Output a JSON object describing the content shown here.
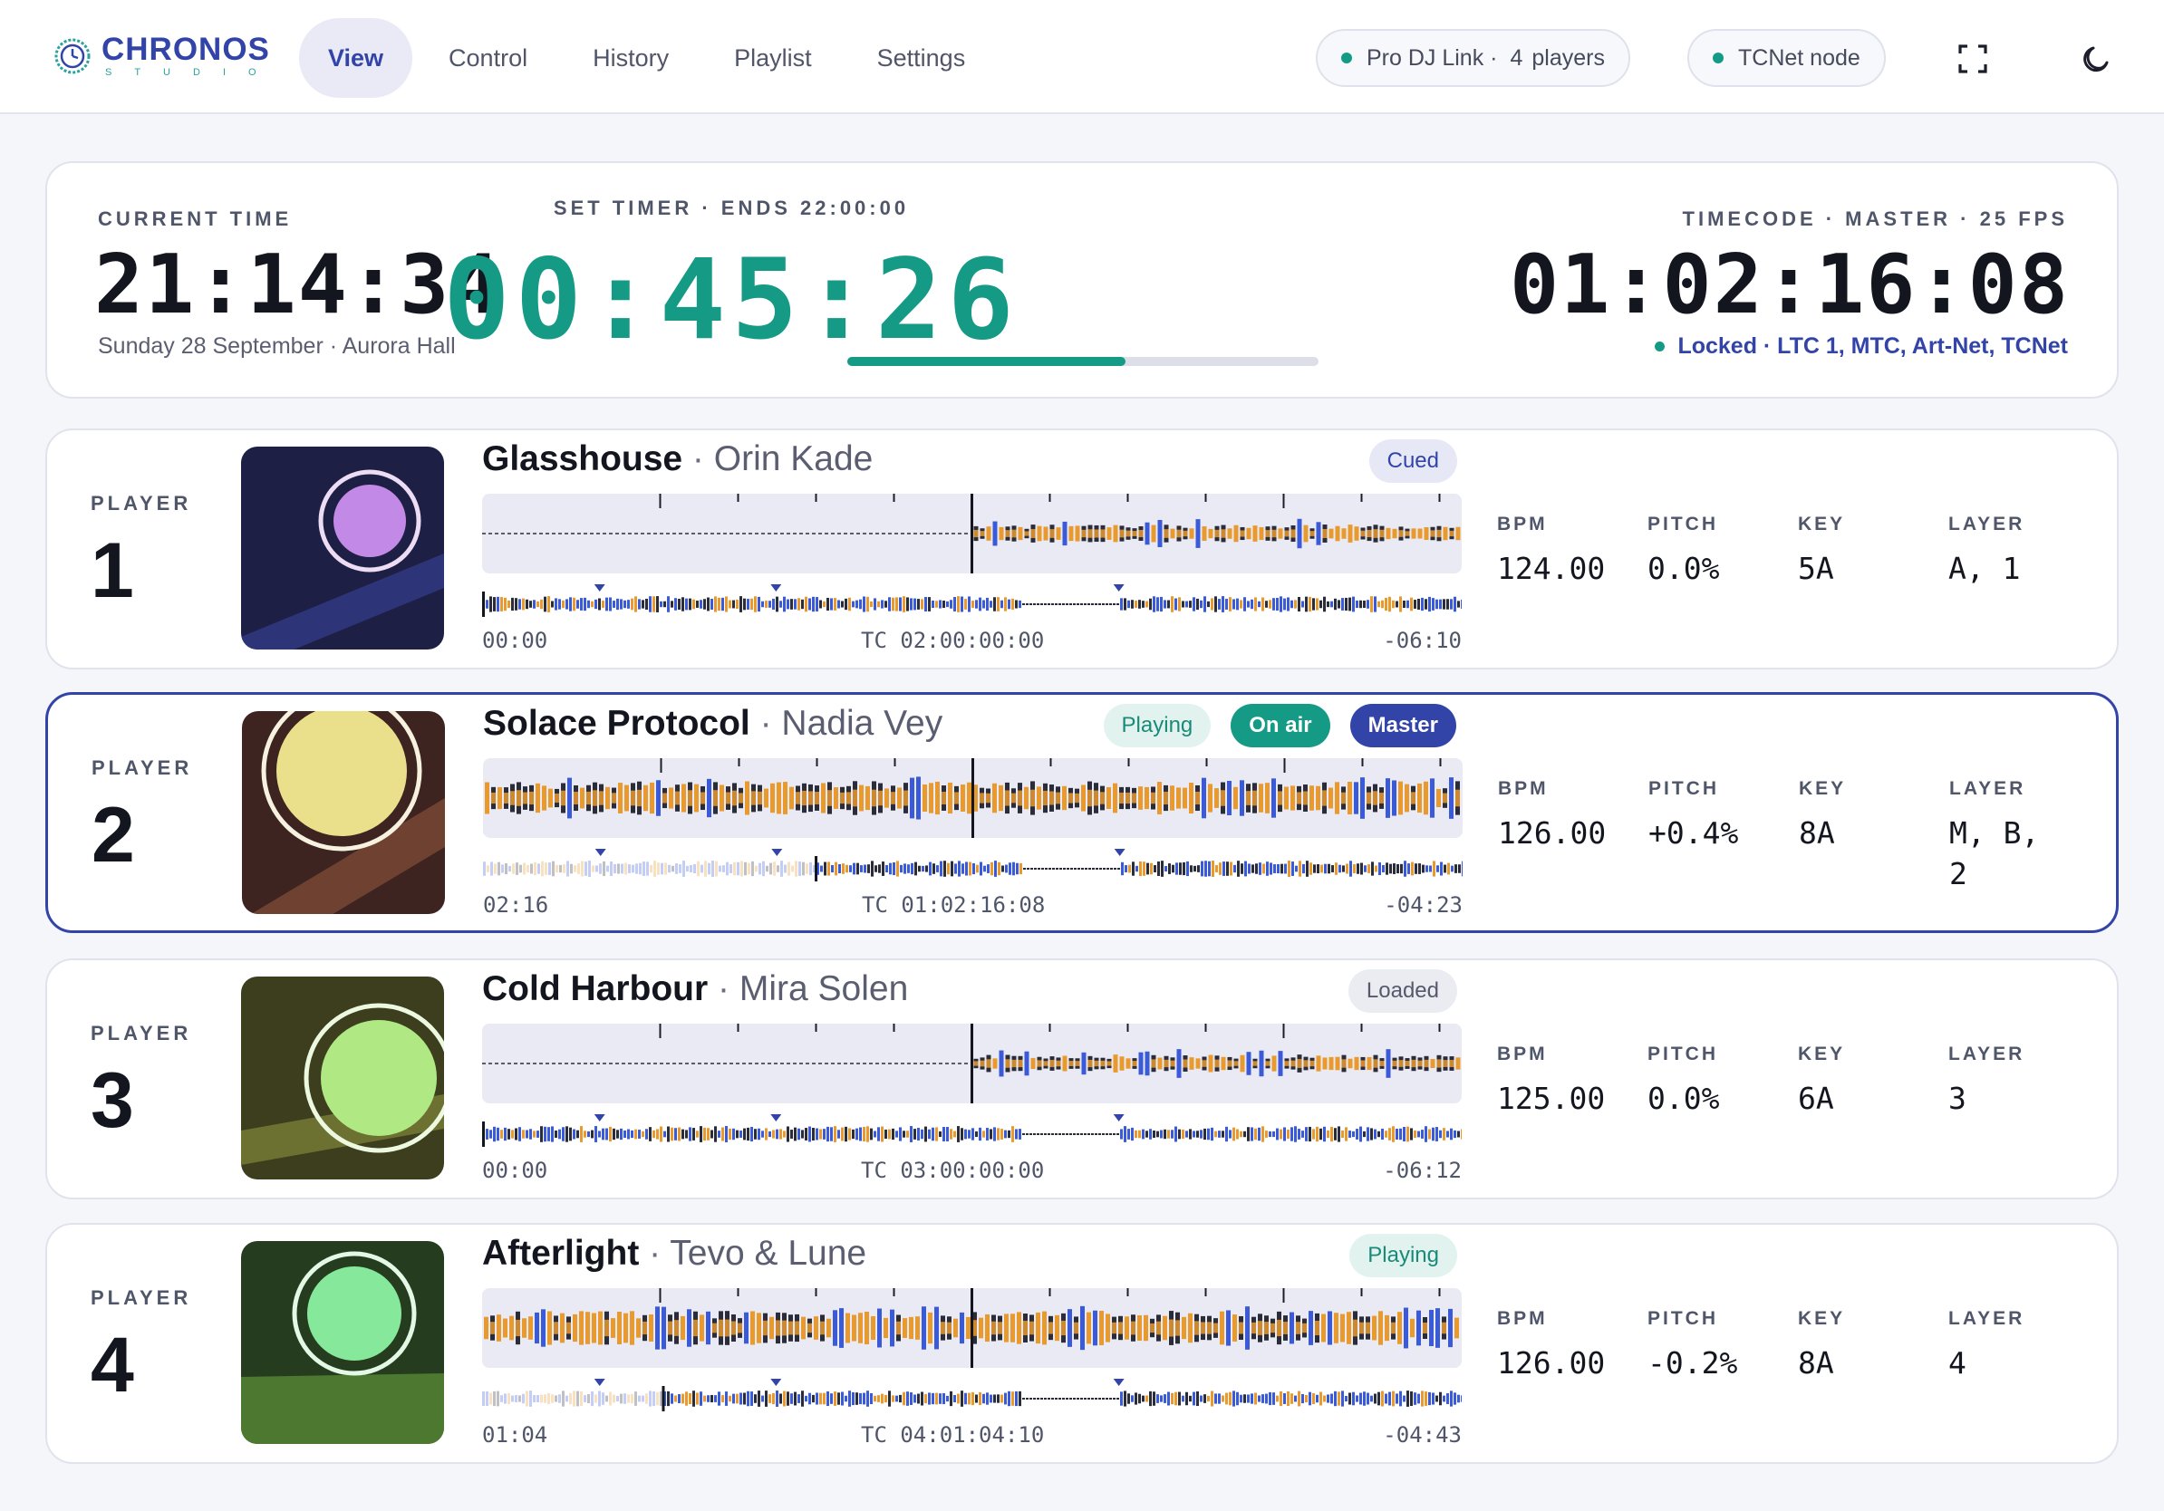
{
  "app": {
    "logo_word": "CHRONOS",
    "logo_sub": "STUDIO"
  },
  "nav": {
    "tabs": [
      {
        "label": "View",
        "active": true
      },
      {
        "label": "Control"
      },
      {
        "label": "History"
      },
      {
        "label": "Playlist"
      },
      {
        "label": "Settings"
      }
    ]
  },
  "status": {
    "prodj_label": "Pro DJ Link ·",
    "prodj_count": "4",
    "prodj_unit": "players",
    "tcnet_label": "TCNet node"
  },
  "colors": {
    "accent": "#3344a8",
    "teal": "#149a85",
    "orange": "#e99a2e",
    "blue": "#3a5ad8",
    "dark": "#2a2c3a"
  },
  "clock": {
    "current_label": "CURRENT TIME",
    "current_time": "21:14:34",
    "current_sub": "Sunday 28 September · Aurora Hall",
    "timer_label": "SET TIMER · ENDS 22:00:00",
    "timer_value": "00:45:26",
    "timer_progress": 0.59,
    "tc_label": "TIMECODE · MASTER · 25 FPS",
    "tc_value": "01:02:16:08",
    "tc_status": "Locked · LTC 1, MTC, Art-Net, TCNet"
  },
  "players": [
    {
      "label": "PLAYER",
      "number": "1",
      "title": "Glasshouse",
      "artist": "Orin Kade",
      "badges": [
        {
          "text": "Cued",
          "style": "cued"
        }
      ],
      "elapsed": "00:00",
      "tc": "TC 02:00:00:00",
      "remaining": "-06:10",
      "progress": 0.0,
      "stats": {
        "bpm_label": "BPM",
        "bpm": "124.00",
        "pitch_label": "PITCH",
        "pitch": "0.0%",
        "key_label": "KEY",
        "key": "5A",
        "layer_label": "LAYER",
        "layer": "A, 1"
      }
    },
    {
      "label": "PLAYER",
      "number": "2",
      "title": "Solace Protocol",
      "artist": "Nadia Vey",
      "badges": [
        {
          "text": "Playing",
          "style": "playing"
        },
        {
          "text": "On air",
          "style": "onair"
        },
        {
          "text": "Master",
          "style": "master"
        }
      ],
      "elapsed": "02:16",
      "tc": "TC 01:02:16:08",
      "remaining": "-04:23",
      "progress": 0.34,
      "stats": {
        "bpm_label": "BPM",
        "bpm": "126.00",
        "pitch_label": "PITCH",
        "pitch": "+0.4%",
        "key_label": "KEY",
        "key": "8A",
        "layer_label": "LAYER",
        "layer": "M, B,\n2"
      }
    },
    {
      "label": "PLAYER",
      "number": "3",
      "title": "Cold Harbour",
      "artist": "Mira Solen",
      "badges": [
        {
          "text": "Loaded",
          "style": "loaded"
        }
      ],
      "elapsed": "00:00",
      "tc": "TC 03:00:00:00",
      "remaining": "-06:12",
      "progress": 0.0,
      "stats": {
        "bpm_label": "BPM",
        "bpm": "125.00",
        "pitch_label": "PITCH",
        "pitch": "0.0%",
        "key_label": "KEY",
        "key": "6A",
        "layer_label": "LAYER",
        "layer": "3"
      }
    },
    {
      "label": "PLAYER",
      "number": "4",
      "title": "Afterlight",
      "artist": "Tevo & Lune",
      "badges": [
        {
          "text": "Playing",
          "style": "playing"
        }
      ],
      "elapsed": "01:04",
      "tc": "TC 04:01:04:10",
      "remaining": "-04:43",
      "progress": 0.185,
      "stats": {
        "bpm_label": "BPM",
        "bpm": "126.00",
        "pitch_label": "PITCH",
        "pitch": "-0.2%",
        "key_label": "KEY",
        "key": "8A",
        "layer_label": "LAYER",
        "layer": "4"
      }
    }
  ]
}
